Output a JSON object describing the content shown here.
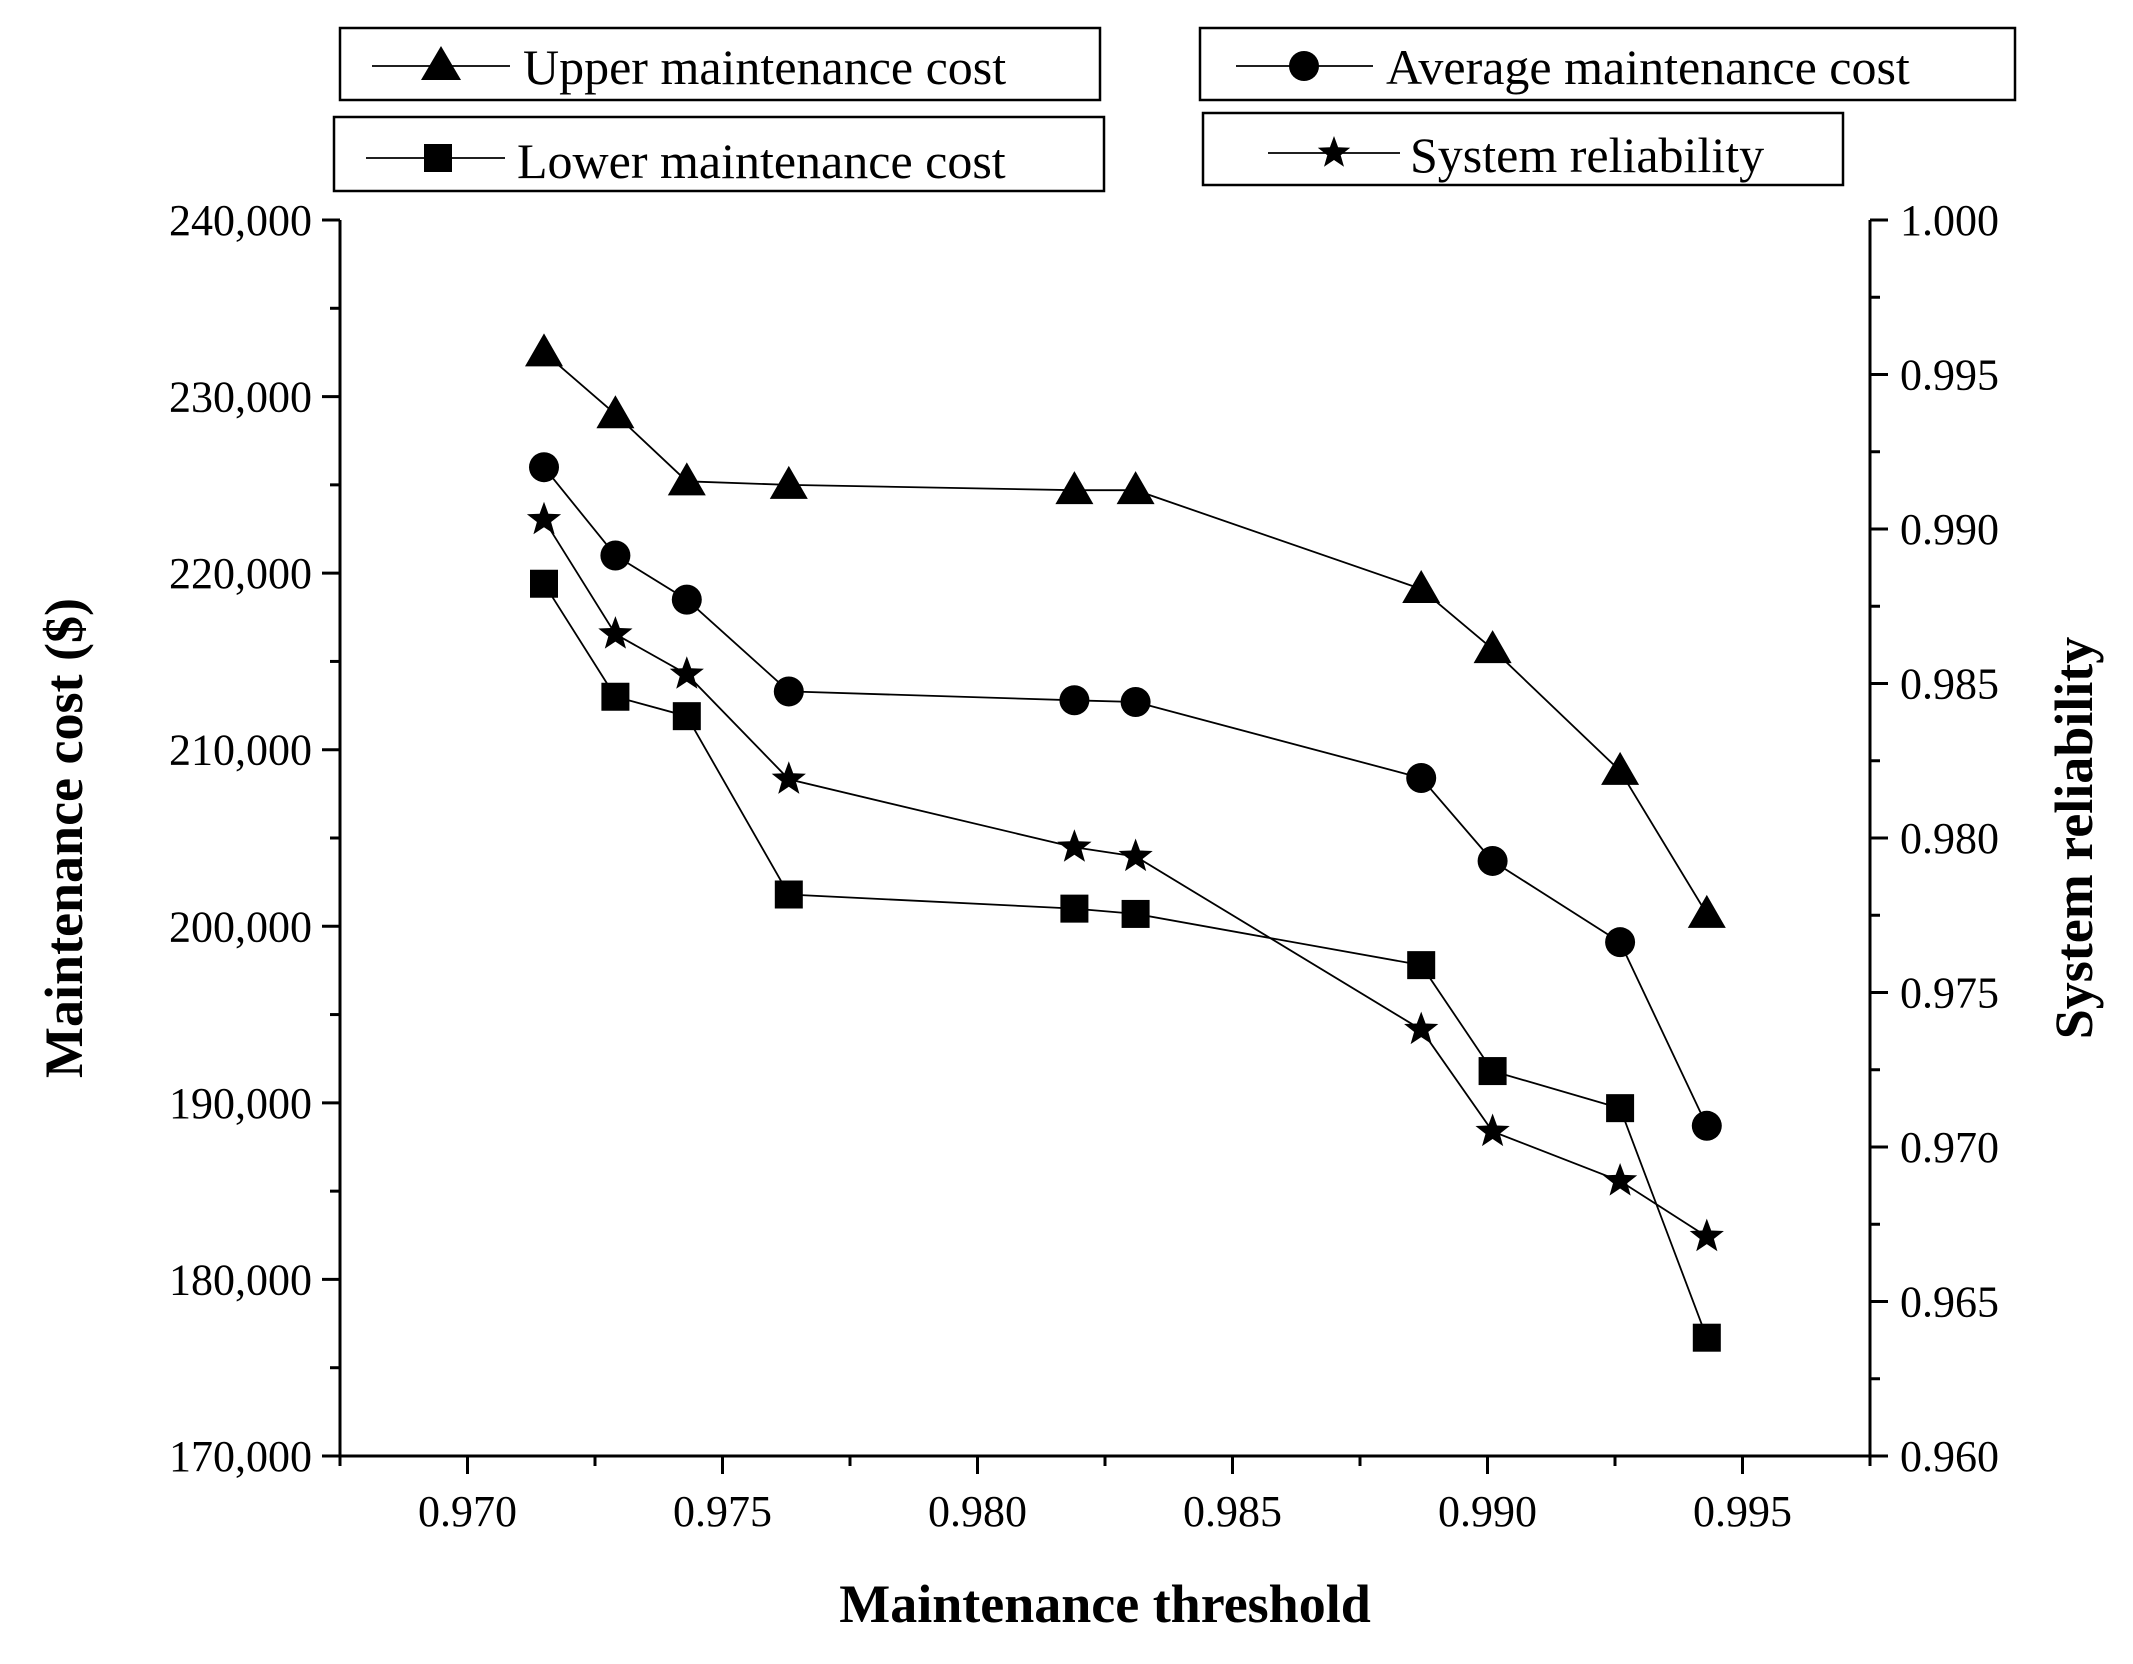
{
  "chart_data": {
    "type": "line",
    "xlabel": "Maintenance threshold",
    "ylabel": "Maintenance cost ($)",
    "y2label": "System reliability",
    "xlim": [
      0.9675,
      0.9975
    ],
    "ylim": [
      170000,
      240000
    ],
    "y2lim": [
      0.96,
      1.0
    ],
    "x_ticks": [
      0.97,
      0.975,
      0.98,
      0.985,
      0.99,
      0.995
    ],
    "x_tick_labels": [
      "0.970",
      "0.975",
      "0.980",
      "0.985",
      "0.990",
      "0.995"
    ],
    "y_ticks": [
      170000,
      180000,
      190000,
      200000,
      210000,
      220000,
      230000,
      240000
    ],
    "y_tick_labels": [
      "170,000",
      "180,000",
      "190,000",
      "200,000",
      "210,000",
      "220,000",
      "230,000",
      "240,000"
    ],
    "y2_ticks": [
      0.96,
      0.965,
      0.97,
      0.975,
      0.98,
      0.985,
      0.99,
      0.995,
      1.0
    ],
    "y2_tick_labels": [
      "0.960",
      "0.965",
      "0.970",
      "0.975",
      "0.980",
      "0.985",
      "0.990",
      "0.995",
      "1.000"
    ],
    "x": [
      0.9715,
      0.9729,
      0.9743,
      0.9763,
      0.9819,
      0.9831,
      0.9887,
      0.9901,
      0.9926,
      0.9943
    ],
    "series": [
      {
        "name": "Upper maintenance cost",
        "marker": "triangle",
        "axis": "left",
        "values": [
          232500,
          229000,
          225200,
          225000,
          224700,
          224700,
          219100,
          215700,
          208800,
          200700
        ]
      },
      {
        "name": "Average maintenance cost",
        "marker": "circle",
        "axis": "left",
        "values": [
          226000,
          221000,
          218500,
          213300,
          212800,
          212700,
          208400,
          203700,
          199100,
          188700
        ]
      },
      {
        "name": "Lower maintenance cost",
        "marker": "square",
        "axis": "left",
        "values": [
          219400,
          213000,
          211900,
          201800,
          201000,
          200700,
          197800,
          191800,
          189700,
          176700
        ]
      },
      {
        "name": "System reliability",
        "marker": "star",
        "axis": "right",
        "values": [
          0.9903,
          0.9866,
          0.9853,
          0.9819,
          0.9797,
          0.9794,
          0.9738,
          0.9705,
          0.9689,
          0.9671
        ]
      }
    ],
    "legend": {
      "upper": "Upper maintenance cost",
      "average": "Average maintenance cost",
      "lower": "Lower maintenance cost",
      "reliability": "System reliability"
    }
  }
}
